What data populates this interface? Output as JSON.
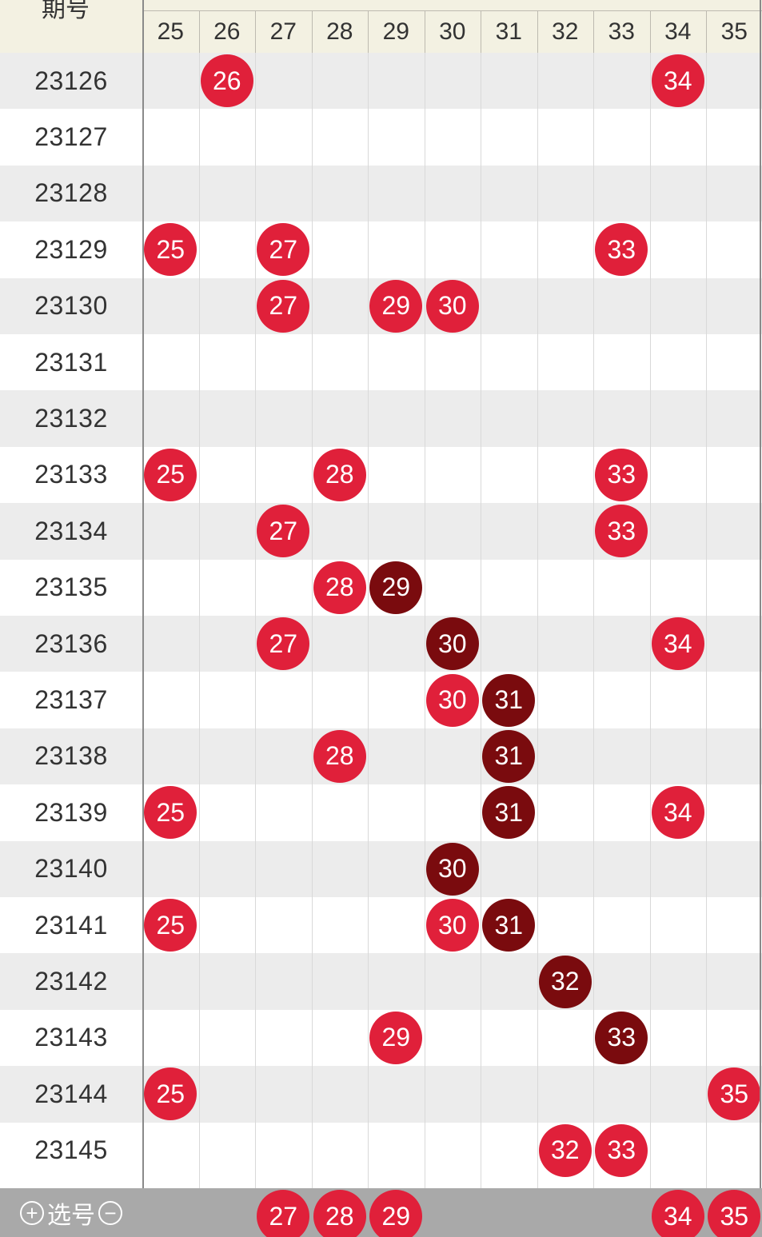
{
  "header": {
    "label": "期号",
    "columns": [
      "25",
      "26",
      "27",
      "28",
      "29",
      "30",
      "31",
      "32",
      "33",
      "34",
      "35"
    ]
  },
  "rows": [
    {
      "period": "23126",
      "balls": [
        {
          "n": "26",
          "col": 1,
          "tone": "red"
        },
        {
          "n": "34",
          "col": 9,
          "tone": "red"
        }
      ]
    },
    {
      "period": "23127",
      "balls": []
    },
    {
      "period": "23128",
      "balls": []
    },
    {
      "period": "23129",
      "balls": [
        {
          "n": "25",
          "col": 0,
          "tone": "red"
        },
        {
          "n": "27",
          "col": 2,
          "tone": "red"
        },
        {
          "n": "33",
          "col": 8,
          "tone": "red"
        }
      ]
    },
    {
      "period": "23130",
      "balls": [
        {
          "n": "27",
          "col": 2,
          "tone": "red"
        },
        {
          "n": "29",
          "col": 4,
          "tone": "red"
        },
        {
          "n": "30",
          "col": 5,
          "tone": "red"
        }
      ]
    },
    {
      "period": "23131",
      "balls": []
    },
    {
      "period": "23132",
      "balls": []
    },
    {
      "period": "23133",
      "balls": [
        {
          "n": "25",
          "col": 0,
          "tone": "red"
        },
        {
          "n": "28",
          "col": 3,
          "tone": "red"
        },
        {
          "n": "33",
          "col": 8,
          "tone": "red"
        }
      ]
    },
    {
      "period": "23134",
      "balls": [
        {
          "n": "27",
          "col": 2,
          "tone": "red"
        },
        {
          "n": "33",
          "col": 8,
          "tone": "red"
        }
      ]
    },
    {
      "period": "23135",
      "balls": [
        {
          "n": "28",
          "col": 3,
          "tone": "red"
        },
        {
          "n": "29",
          "col": 4,
          "tone": "dark"
        }
      ]
    },
    {
      "period": "23136",
      "balls": [
        {
          "n": "27",
          "col": 2,
          "tone": "red"
        },
        {
          "n": "30",
          "col": 5,
          "tone": "dark"
        },
        {
          "n": "34",
          "col": 9,
          "tone": "red"
        }
      ]
    },
    {
      "period": "23137",
      "balls": [
        {
          "n": "30",
          "col": 5,
          "tone": "red"
        },
        {
          "n": "31",
          "col": 6,
          "tone": "dark"
        }
      ]
    },
    {
      "period": "23138",
      "balls": [
        {
          "n": "28",
          "col": 3,
          "tone": "red"
        },
        {
          "n": "31",
          "col": 6,
          "tone": "dark"
        }
      ]
    },
    {
      "period": "23139",
      "balls": [
        {
          "n": "25",
          "col": 0,
          "tone": "red"
        },
        {
          "n": "31",
          "col": 6,
          "tone": "dark"
        },
        {
          "n": "34",
          "col": 9,
          "tone": "red"
        }
      ]
    },
    {
      "period": "23140",
      "balls": [
        {
          "n": "30",
          "col": 5,
          "tone": "dark"
        }
      ]
    },
    {
      "period": "23141",
      "balls": [
        {
          "n": "25",
          "col": 0,
          "tone": "red"
        },
        {
          "n": "30",
          "col": 5,
          "tone": "red"
        },
        {
          "n": "31",
          "col": 6,
          "tone": "dark"
        }
      ]
    },
    {
      "period": "23142",
      "balls": [
        {
          "n": "32",
          "col": 7,
          "tone": "dark"
        }
      ]
    },
    {
      "period": "23143",
      "balls": [
        {
          "n": "29",
          "col": 4,
          "tone": "red"
        },
        {
          "n": "33",
          "col": 8,
          "tone": "dark"
        }
      ]
    },
    {
      "period": "23144",
      "balls": [
        {
          "n": "25",
          "col": 0,
          "tone": "red"
        },
        {
          "n": "35",
          "col": 10,
          "tone": "red"
        }
      ]
    },
    {
      "period": "23145",
      "balls": [
        {
          "n": "32",
          "col": 7,
          "tone": "red"
        },
        {
          "n": "33",
          "col": 8,
          "tone": "red"
        }
      ]
    }
  ],
  "footer": {
    "label": "选号",
    "plus_icon": "plus-circle-icon",
    "minus_icon": "minus-circle-icon",
    "selected": [
      {
        "n": "27",
        "col": 2
      },
      {
        "n": "28",
        "col": 3
      },
      {
        "n": "29",
        "col": 4
      },
      {
        "n": "34",
        "col": 9
      },
      {
        "n": "35",
        "col": 10
      }
    ]
  },
  "colors": {
    "ball_red": "#e0203a",
    "ball_dark": "#7a0b0e",
    "row_alt": "#ececec",
    "header_bg": "#f3f1e2",
    "footer_bg": "#a9a9a9"
  }
}
